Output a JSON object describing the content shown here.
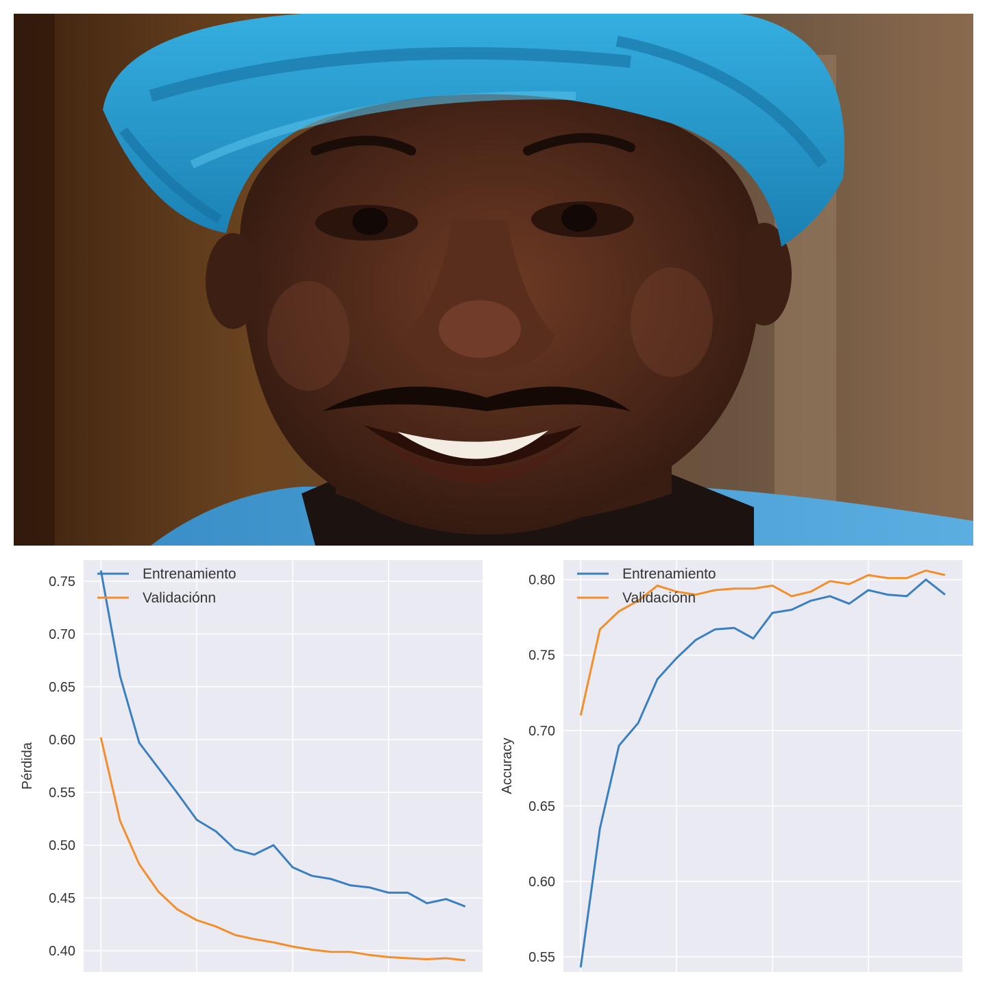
{
  "photo": {
    "subject": "smiling-man-blue-turban",
    "colors": {
      "turban": "#2a9fd0",
      "turban_shadow": "#17709c",
      "skin": "#4a2718",
      "skin_highlight": "#7a4530",
      "background_left": "#4a2c16",
      "background_right": "#7a6048",
      "teeth": "#f2ece2"
    }
  },
  "colors": {
    "plot_bg": "#eaeaf2",
    "grid": "#ffffff",
    "train": "#3a7fbf",
    "val": "#f28e2b"
  },
  "chart_data": [
    {
      "type": "line",
      "title": "",
      "xlabel": "",
      "ylabel": "Pérdida",
      "xlim": [
        -0.9,
        19.9
      ],
      "ylim": [
        0.38,
        0.77
      ],
      "yticks": [
        0.4,
        0.45,
        0.5,
        0.55,
        0.6,
        0.65,
        0.7,
        0.75
      ],
      "ytick_labels": [
        "0.40",
        "0.45",
        "0.50",
        "0.55",
        "0.60",
        "0.65",
        "0.70",
        "0.75"
      ],
      "xticks": [
        0,
        5,
        10,
        15
      ],
      "grid": true,
      "legend": "top-left",
      "x": [
        0,
        1,
        2,
        3,
        4,
        5,
        6,
        7,
        8,
        9,
        10,
        11,
        12,
        13,
        14,
        15,
        16,
        17,
        18,
        19
      ],
      "series": [
        {
          "name": "Entrenamiento",
          "color": "#3a7fbf",
          "values": [
            0.76,
            0.66,
            0.597,
            0.573,
            0.549,
            0.524,
            0.513,
            0.496,
            0.491,
            0.5,
            0.479,
            0.471,
            0.468,
            0.462,
            0.46,
            0.455,
            0.455,
            0.445,
            0.449,
            0.442
          ]
        },
        {
          "name": "Validaciónn",
          "color": "#f28e2b",
          "values": [
            0.602,
            0.523,
            0.482,
            0.456,
            0.439,
            0.429,
            0.423,
            0.415,
            0.411,
            0.408,
            0.404,
            0.401,
            0.399,
            0.399,
            0.396,
            0.394,
            0.393,
            0.392,
            0.393,
            0.391
          ]
        }
      ]
    },
    {
      "type": "line",
      "title": "",
      "xlabel": "",
      "ylabel": "Accuracy",
      "xlim": [
        -0.9,
        19.9
      ],
      "ylim": [
        0.54,
        0.813
      ],
      "yticks": [
        0.55,
        0.6,
        0.65,
        0.7,
        0.75,
        0.8
      ],
      "ytick_labels": [
        "0.55",
        "0.60",
        "0.65",
        "0.70",
        "0.75",
        "0.80"
      ],
      "xticks": [
        0,
        5,
        10,
        15
      ],
      "grid": true,
      "legend": "top-left",
      "x": [
        0,
        1,
        2,
        3,
        4,
        5,
        6,
        7,
        8,
        9,
        10,
        11,
        12,
        13,
        14,
        15,
        16,
        17,
        18,
        19
      ],
      "series": [
        {
          "name": "Entrenamiento",
          "color": "#3a7fbf",
          "values": [
            0.543,
            0.635,
            0.69,
            0.705,
            0.734,
            0.748,
            0.76,
            0.767,
            0.768,
            0.761,
            0.778,
            0.78,
            0.786,
            0.789,
            0.784,
            0.793,
            0.79,
            0.789,
            0.8,
            0.79
          ]
        },
        {
          "name": "Validaciónn",
          "color": "#f28e2b",
          "values": [
            0.71,
            0.767,
            0.779,
            0.786,
            0.796,
            0.792,
            0.79,
            0.793,
            0.794,
            0.794,
            0.796,
            0.789,
            0.792,
            0.799,
            0.797,
            0.803,
            0.801,
            0.801,
            0.806,
            0.803
          ]
        }
      ]
    }
  ]
}
